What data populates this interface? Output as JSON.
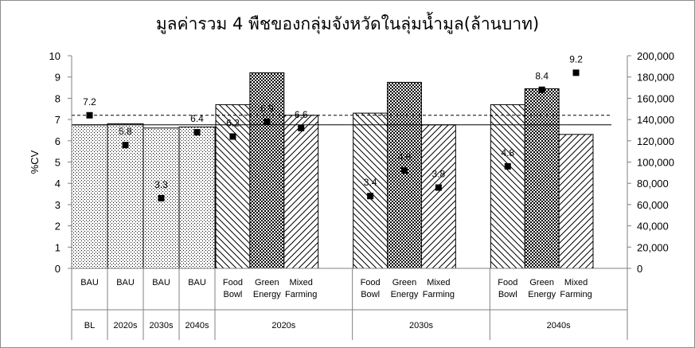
{
  "title": "มูลค่ารวม 4 พืชของกลุ่มจังหวัดในลุ่มน้ำมูล(ล้านบาท)",
  "chart_data": {
    "type": "bar",
    "title": "มูลค่ารวม 4 พืชของกลุ่มจังหวัดในลุ่มน้ำมูล(ล้านบาท)",
    "ylabel": "%CV",
    "ylim": [
      0,
      10
    ],
    "y_ticks": [
      "0",
      "1",
      "2",
      "3",
      "4",
      "5",
      "6",
      "7",
      "8",
      "9",
      "10"
    ],
    "y2lim": [
      0,
      200000
    ],
    "y2_ticks": [
      "0",
      "20,000",
      "40,000",
      "60,000",
      "80,000",
      "100,000",
      "120,000",
      "140,000",
      "160,000",
      "180,000",
      "200,000"
    ],
    "grid": false,
    "legend": "none",
    "groups": [
      {
        "label": "BL",
        "categories": [
          {
            "line1": "BAU",
            "line2": ""
          }
        ]
      },
      {
        "label": "2020s",
        "categories": [
          {
            "line1": "BAU",
            "line2": ""
          }
        ]
      },
      {
        "label": "2030s",
        "categories": [
          {
            "line1": "BAU",
            "line2": ""
          }
        ]
      },
      {
        "label": "2040s",
        "categories": [
          {
            "line1": "BAU",
            "line2": ""
          }
        ]
      },
      {
        "label": "2020s",
        "categories": [
          {
            "line1": "Food",
            "line2": "Bowl"
          },
          {
            "line1": "Green",
            "line2": "Energy"
          },
          {
            "line1": "Mixed",
            "line2": "Farming"
          }
        ]
      },
      {
        "label": "2030s",
        "categories": [
          {
            "line1": "Food",
            "line2": "Bowl"
          },
          {
            "line1": "Green",
            "line2": "Energy"
          },
          {
            "line1": "Mixed",
            "line2": "Farming"
          }
        ]
      },
      {
        "label": "2040s",
        "categories": [
          {
            "line1": "Food",
            "line2": "Bowl"
          },
          {
            "line1": "Green",
            "line2": "Energy"
          },
          {
            "line1": "Mixed",
            "line2": "Farming"
          }
        ]
      }
    ],
    "bars": [
      {
        "value": 135000,
        "pattern": "dots"
      },
      {
        "value": 136000,
        "pattern": "dots"
      },
      {
        "value": 132000,
        "pattern": "dots"
      },
      {
        "value": 133000,
        "pattern": "dots"
      },
      {
        "value": 154000,
        "pattern": "back-diagonal"
      },
      {
        "value": 184000,
        "pattern": "checker"
      },
      {
        "value": 144000,
        "pattern": "forward-diagonal"
      },
      {
        "value": 146000,
        "pattern": "back-diagonal"
      },
      {
        "value": 175000,
        "pattern": "checker"
      },
      {
        "value": 135000,
        "pattern": "forward-diagonal"
      },
      {
        "value": 154000,
        "pattern": "back-diagonal"
      },
      {
        "value": 169000,
        "pattern": "checker"
      },
      {
        "value": 126000,
        "pattern": "forward-diagonal"
      }
    ],
    "cv_points": [
      {
        "value": 7.2,
        "label": "7.2"
      },
      {
        "value": 5.8,
        "label": "5.8"
      },
      {
        "value": 3.3,
        "label": "3.3"
      },
      {
        "value": 6.4,
        "label": "6.4"
      },
      {
        "value": 6.2,
        "label": "6.2"
      },
      {
        "value": 6.9,
        "label": "6.9"
      },
      {
        "value": 6.6,
        "label": "6.6"
      },
      {
        "value": 3.4,
        "label": "3.4"
      },
      {
        "value": 4.6,
        "label": "4.6"
      },
      {
        "value": 3.8,
        "label": "3.8"
      },
      {
        "value": 4.8,
        "label": "4.8"
      },
      {
        "value": 8.4,
        "label": "8.4"
      },
      {
        "value": 9.2,
        "label": "9.2"
      }
    ],
    "reference_lines": [
      {
        "axis": "left",
        "value": 7.2,
        "style": "dashed"
      },
      {
        "axis": "right",
        "value": 135000,
        "style": "solid"
      }
    ],
    "colors": {
      "bar_fill": "#ffffff",
      "pattern": "#000000",
      "marker": "#000000",
      "axis": "#808080"
    }
  }
}
